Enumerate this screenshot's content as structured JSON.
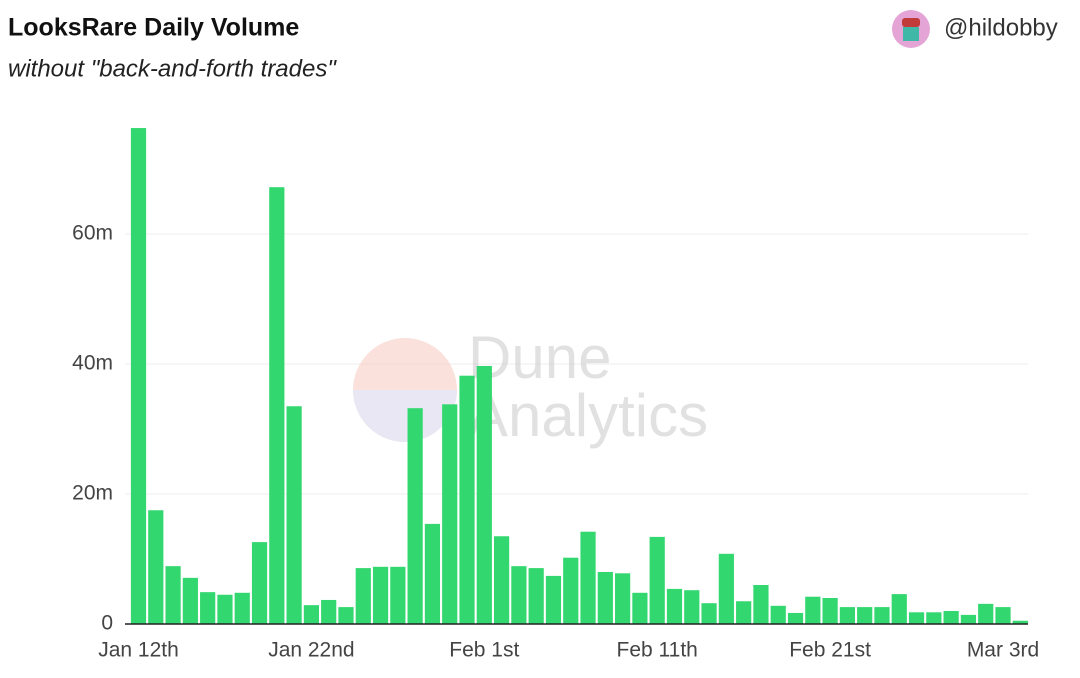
{
  "chart_data": {
    "type": "bar",
    "title": "LooksRare Daily Volume",
    "subtitle": "without \"back-and-forth trades\"",
    "author": "@hildobby",
    "watermark": [
      "Dune",
      "Analytics"
    ],
    "categories": [
      "Jan 12th",
      null,
      null,
      null,
      null,
      null,
      null,
      null,
      null,
      null,
      "Jan 22nd",
      null,
      null,
      null,
      null,
      null,
      null,
      null,
      null,
      null,
      "Feb 1st",
      null,
      null,
      null,
      null,
      null,
      null,
      null,
      null,
      null,
      "Feb 11th",
      null,
      null,
      null,
      null,
      null,
      null,
      null,
      null,
      null,
      "Feb 21st",
      null,
      null,
      null,
      null,
      null,
      null,
      null,
      null,
      null,
      "Mar 3rd",
      null
    ],
    "values": [
      76.3,
      17.5,
      8.9,
      7.1,
      4.9,
      4.5,
      4.8,
      12.6,
      67.2,
      33.5,
      2.9,
      3.7,
      2.6,
      8.6,
      8.8,
      8.8,
      33.2,
      15.4,
      33.8,
      38.2,
      39.7,
      13.5,
      8.9,
      8.6,
      7.4,
      10.2,
      14.2,
      8.0,
      7.8,
      4.8,
      13.4,
      5.4,
      5.2,
      3.2,
      10.8,
      3.5,
      6.0,
      2.8,
      1.7,
      4.2,
      4.0,
      2.6,
      2.6,
      2.6,
      4.6,
      1.8,
      1.8,
      2.0,
      1.4,
      3.1,
      2.6,
      0.5
    ],
    "color": "#33d76f",
    "ylim": [
      0,
      80
    ],
    "yticks": [
      0,
      {
        "value": 20,
        "label": "20m"
      },
      {
        "value": 40,
        "label": "40m"
      },
      {
        "value": 60,
        "label": "60m"
      }
    ],
    "grid": true
  }
}
